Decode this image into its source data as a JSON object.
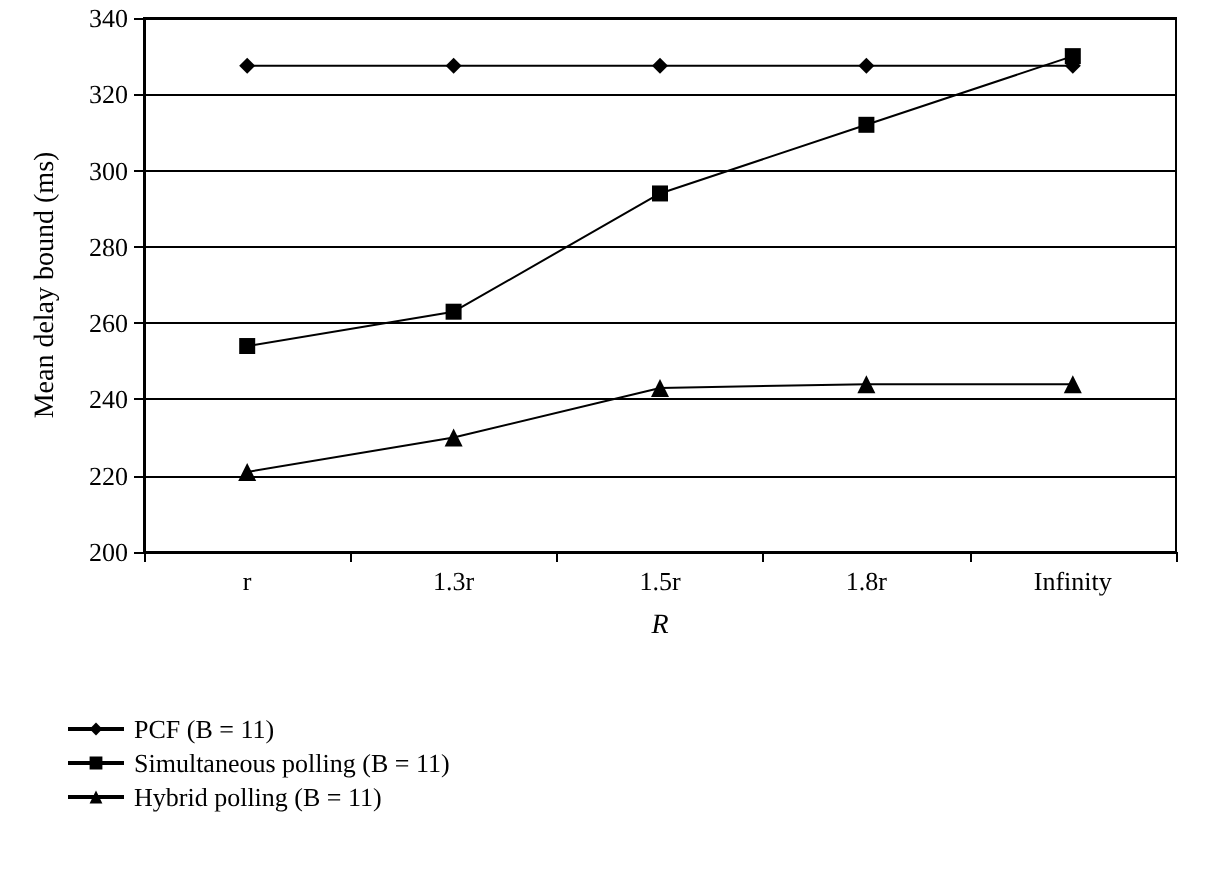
{
  "chart_data": {
    "type": "line",
    "xlabel": "R",
    "ylabel": "Mean delay bound (ms)",
    "categories": [
      "r",
      "1.3r",
      "1.5r",
      "1.8r",
      "Infinity"
    ],
    "series": [
      {
        "name": "PCF (B = 11)",
        "color": "#000000",
        "marker": "diamond",
        "values": [
          327.5,
          327.5,
          327.5,
          327.5,
          327.5
        ]
      },
      {
        "name": "Simultaneous polling (B = 11)",
        "color": "#000000",
        "marker": "square",
        "values": [
          254,
          263,
          294,
          312,
          330
        ]
      },
      {
        "name": "Hybrid polling (B = 11)",
        "color": "#000000",
        "marker": "triangle",
        "values": [
          221,
          230,
          243,
          244,
          244
        ]
      }
    ],
    "ylim": [
      200,
      340
    ],
    "yticks": [
      200,
      220,
      240,
      260,
      280,
      300,
      320,
      340
    ],
    "grid": "y",
    "legend": "bottom left",
    "line_style": "solid"
  }
}
